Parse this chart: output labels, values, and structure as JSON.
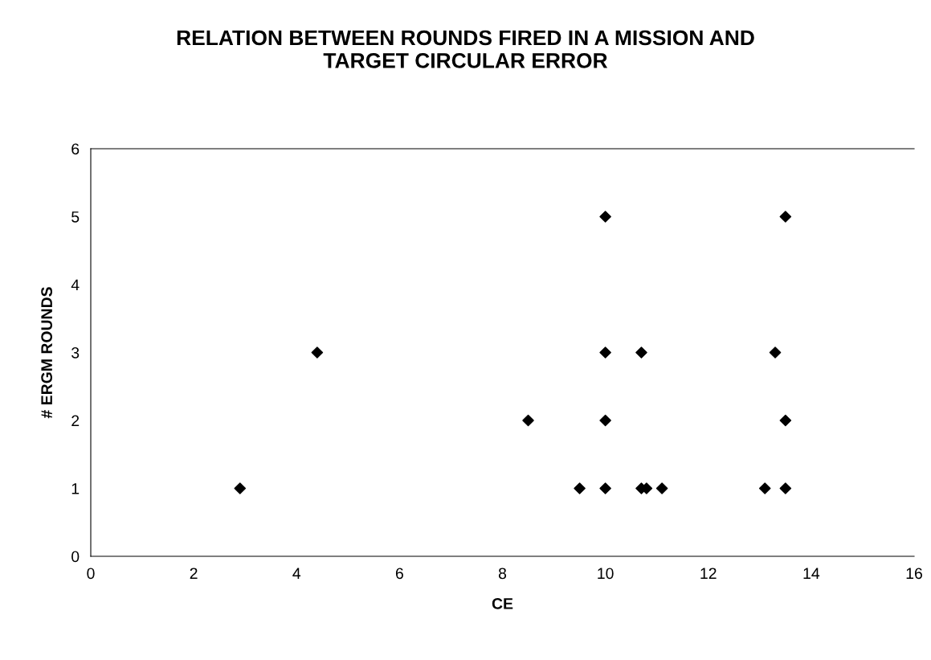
{
  "chart_data": {
    "type": "scatter",
    "title": "RELATION BETWEEN ROUNDS FIRED IN A MISSION AND\nTARGET CIRCULAR ERROR",
    "xlabel": "CE",
    "ylabel": "# ERGM ROUNDS",
    "x": [
      2.9,
      4.4,
      8.5,
      10.0,
      10.0,
      10.0,
      10.0,
      9.5,
      10.7,
      10.7,
      10.8,
      11.1,
      13.5,
      13.3,
      13.5,
      13.1,
      13.5
    ],
    "series": [
      {
        "color": "#000000",
        "values": [
          1,
          3,
          2,
          5,
          3,
          2,
          1,
          1,
          3,
          1,
          1,
          1,
          5,
          3,
          2,
          1,
          1
        ]
      }
    ],
    "xlim": [
      0,
      16
    ],
    "xticks": [
      0,
      2,
      4,
      6,
      8,
      10,
      12,
      14,
      16
    ],
    "ylim": [
      0,
      6
    ],
    "yticks": [
      0,
      1,
      2,
      3,
      4,
      5,
      6
    ],
    "marker": "diamond",
    "grid": false,
    "legend": false
  }
}
